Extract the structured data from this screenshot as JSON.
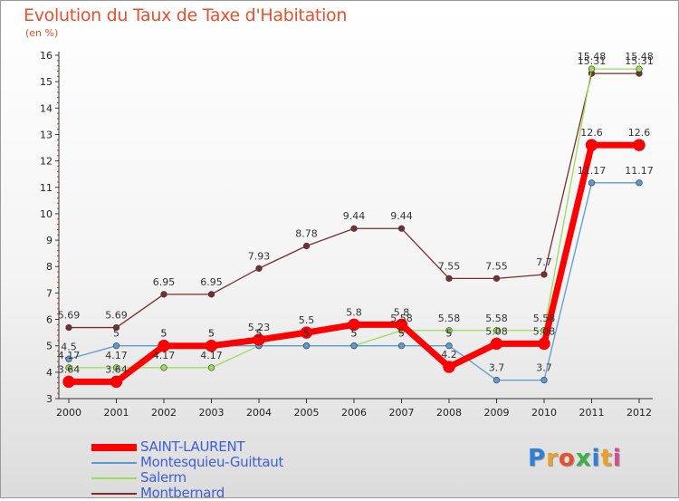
{
  "title": "Evolution du Taux de Taxe d'Habitation",
  "unit": "(en %)",
  "logo": {
    "text": "Proxiti",
    "colors": [
      "#2f7fd9",
      "#e8a12a",
      "#e8502d",
      "#3db04a",
      "#2f7fd9",
      "#e8a12a",
      "#d94a8c"
    ]
  },
  "chart_data": {
    "type": "line",
    "title": "Evolution du Taux de Taxe d'Habitation",
    "ylabel": "(en %)",
    "xlabel": "",
    "x": [
      "2000",
      "2001",
      "2002",
      "2003",
      "2004",
      "2005",
      "2006",
      "2007",
      "2008",
      "2009",
      "2010",
      "2011",
      "2012"
    ],
    "y_ticks": [
      "3",
      "4",
      "5",
      "6",
      "7",
      "8",
      "9",
      "10",
      "11",
      "12",
      "13",
      "14",
      "15",
      "16"
    ],
    "ylim": [
      3,
      16
    ],
    "grid": false,
    "legend": "bottom-left",
    "series": [
      {
        "name": "SAINT-LAURENT",
        "color": "#ff0000",
        "values": [
          3.64,
          3.64,
          5,
          5,
          5.23,
          5.5,
          5.8,
          5.8,
          4.2,
          5.08,
          5.08,
          12.6,
          12.6
        ],
        "labels": [
          "3.64",
          "3.64",
          "5",
          "5",
          "5.23",
          "5.5",
          "5.8",
          "5.8",
          "4.2",
          "5.08",
          "5.08",
          "12.6",
          "12.6"
        ]
      },
      {
        "name": "Montesquieu-Guittaut",
        "color": "#5b9bd5",
        "values": [
          4.5,
          5,
          5,
          5,
          5,
          5,
          5,
          5,
          5,
          3.7,
          3.7,
          11.17,
          11.17
        ],
        "labels": [
          "4.5",
          "5",
          "5",
          "5",
          "5",
          "5",
          "5",
          "5",
          "5",
          "3.7",
          "3.7",
          "11.17",
          "11.17"
        ]
      },
      {
        "name": "Salerm",
        "color": "#99dd55",
        "values": [
          4.17,
          4.17,
          4.17,
          4.17,
          5,
          5,
          5,
          5.58,
          5.58,
          5.58,
          5.58,
          15.48,
          15.48
        ],
        "labels": [
          "4.17",
          "4.17",
          "4.17",
          "4.17",
          "5",
          "5",
          "5",
          "5.58",
          "5.58",
          "5.58",
          "5.58",
          "15.48",
          "15.48"
        ]
      },
      {
        "name": "Montbernard",
        "color": "#7a2e2e",
        "values": [
          5.69,
          5.69,
          6.95,
          6.95,
          7.93,
          8.78,
          9.44,
          9.44,
          7.55,
          7.55,
          7.7,
          15.31,
          15.31
        ],
        "labels": [
          "5.69",
          "5.69",
          "6.95",
          "6.95",
          "7.93",
          "8.78",
          "9.44",
          "9.44",
          "7.55",
          "7.55",
          "7.7",
          "15.31",
          "15.31"
        ]
      }
    ]
  }
}
